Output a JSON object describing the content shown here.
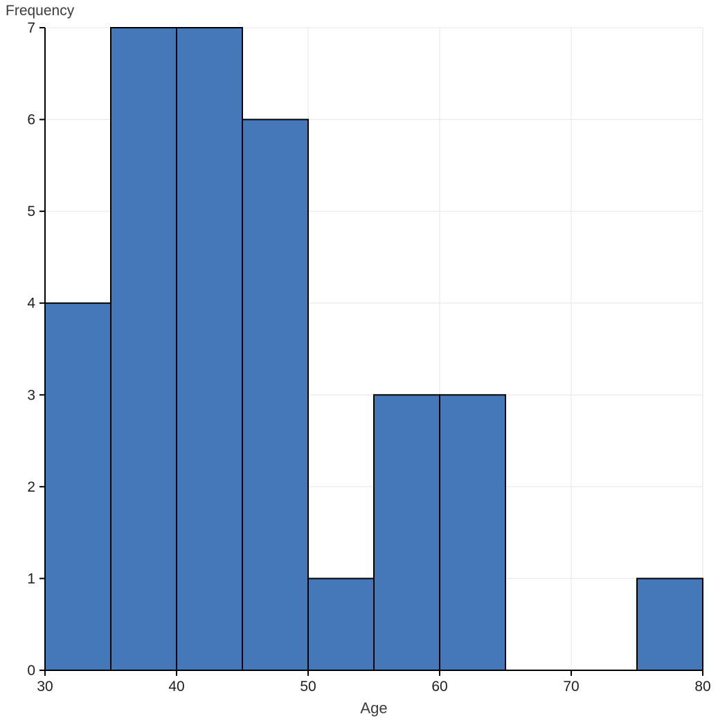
{
  "chart_data": {
    "type": "bar",
    "subtype": "histogram",
    "title": "",
    "xlabel": "Age",
    "ylabel": "Frequency",
    "bin_edges": [
      30,
      35,
      40,
      45,
      50,
      55,
      60,
      65,
      70,
      75,
      80
    ],
    "values": [
      4,
      7,
      7,
      6,
      1,
      3,
      3,
      0,
      0,
      1
    ],
    "xlim": [
      30,
      80
    ],
    "ylim": [
      0,
      7
    ],
    "x_ticks": [
      30,
      40,
      50,
      60,
      70,
      80
    ],
    "y_ticks": [
      0,
      1,
      2,
      3,
      4,
      5,
      6,
      7
    ],
    "grid": "on",
    "legend": "none",
    "bar_color": "#4478b9",
    "edge_color": "#000000",
    "grid_color": "#e4e4e4",
    "axis_color": "#000000"
  }
}
